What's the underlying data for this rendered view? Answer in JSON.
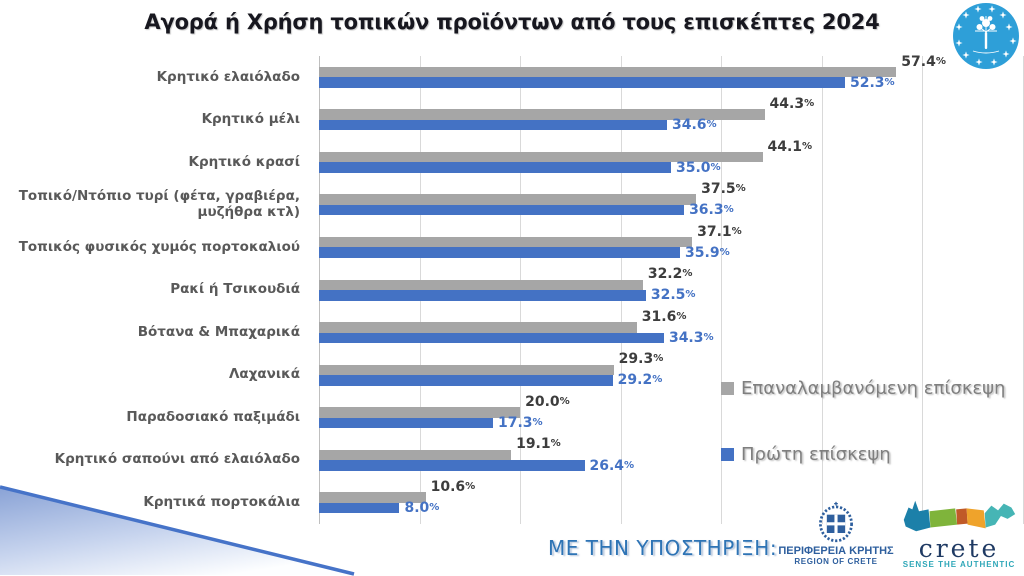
{
  "slide": {
    "title": "Αγορά ή Χρήση τοπικών προϊόντων από τους επισκέπτες 2024"
  },
  "chart_data": {
    "type": "bar",
    "orientation": "horizontal",
    "title": "Αγορά ή Χρήση τοπικών προϊόντων από τους επισκέπτες 2024",
    "categories": [
      "Κρητικό ελαιόλαδο",
      "Κρητικό μέλι",
      "Κρητικό κρασί",
      "Τοπικό/Ντόπιο τυρί (φέτα, γραβιέρα, μυζήθρα κτλ)",
      "Τοπικός φυσικός χυμός πορτοκαλιού",
      "Ρακί ή Τσικουδιά",
      "Βότανα & Μπαχαρικά",
      "Λαχανικά",
      "Παραδοσιακό παξιμάδι",
      "Κρητικό σαπούνι από ελαιόλαδο",
      "Κρητικά πορτοκάλια"
    ],
    "series": [
      {
        "name": "Επαναλαμβανόμενη επίσκεψη",
        "color": "#a6a6a6",
        "values": [
          57.4,
          44.3,
          44.1,
          37.5,
          37.1,
          32.2,
          31.6,
          29.3,
          20.0,
          19.1,
          10.6
        ]
      },
      {
        "name": "Πρώτη επίσκεψη",
        "color": "#4472c4",
        "values": [
          52.3,
          34.6,
          35.0,
          36.3,
          35.9,
          32.5,
          34.3,
          29.2,
          17.3,
          26.4,
          8.0
        ]
      }
    ],
    "value_suffix": "%",
    "xlim": [
      0,
      70
    ],
    "gridline_interval": 10,
    "grid": true,
    "legend_position": "right-middle",
    "data_labels": true
  },
  "footer": {
    "support_text": "ΜΕ ΤΗΝ ΥΠΟΣΤΗΡΙΞΗ:",
    "region_logo": {
      "line1": "ΠΕΡΙΦΕΡΕΙΑ ΚΡΗΤΗΣ",
      "line2": "REGION OF CRETE"
    },
    "crete_logo": {
      "name": "crete",
      "tagline": "SENSE THE AUTHENTIC"
    }
  },
  "colors": {
    "repeat_visit": "#a6a6a6",
    "first_visit": "#4472c4",
    "value_label_gray": "#3d3d3d",
    "value_label_blue": "#4472c4",
    "category_label": "#595959",
    "gridline": "#d9d9d9",
    "support_text": "#2e74b5",
    "region_logo_blue": "#2e5f9e",
    "crete_navy": "#1f3a63",
    "crete_teal": "#2fa7b8",
    "corner_logo_blue": "#2e9fd8"
  }
}
